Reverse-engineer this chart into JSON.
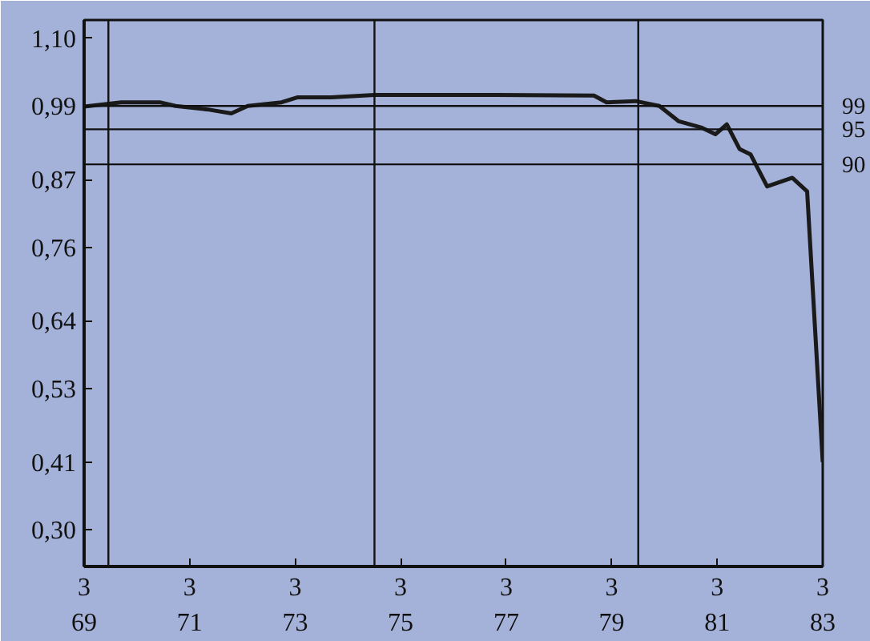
{
  "chart_data": {
    "type": "line",
    "x": [
      "1969-03-01",
      "1969-11-13",
      "1970-08-06",
      "1970-11-24",
      "1971-07-14",
      "1971-12-15",
      "1972-04-07",
      "1972-11-27",
      "1973-03-15",
      "1973-11-06",
      "1974-09-01",
      "1975-12-08",
      "1976-12-19",
      "1978-10-29",
      "1979-01-25",
      "1979-08-13",
      "1980-01-25",
      "1980-06-08",
      "1980-11-09",
      "1981-02-16",
      "1981-05-06",
      "1981-08-02",
      "1981-10-18",
      "1982-02-09",
      "1982-08-02",
      "1982-11-13",
      "1983-03-01"
    ],
    "series": [
      {
        "color": "#1a1a1a",
        "values": [
          0.989,
          0.996,
          0.996,
          0.99,
          0.984,
          0.978,
          0.99,
          0.996,
          1.004,
          1.004,
          1.008,
          1.008,
          1.008,
          1.007,
          0.996,
          0.998,
          0.99,
          0.965,
          0.955,
          0.944,
          0.96,
          0.92,
          0.911,
          0.859,
          0.873,
          0.851,
          0.41
        ]
      }
    ],
    "xlim": [
      "1969-03",
      "1983-03"
    ],
    "xticks": [
      {
        "value": "1969-03",
        "label": "3\n69"
      },
      {
        "value": "1971-03",
        "label": "3\n71"
      },
      {
        "value": "1973-03",
        "label": "3\n73"
      },
      {
        "value": "1975-03",
        "label": "3\n75"
      },
      {
        "value": "1977-03",
        "label": "3\n77"
      },
      {
        "value": "1979-03",
        "label": "3\n79"
      },
      {
        "value": "1981-03",
        "label": "3\n81"
      },
      {
        "value": "1983-03",
        "label": "3\n83"
      }
    ],
    "ylim": [
      0.24,
      1.13
    ],
    "yticks": [
      {
        "value": 0.3,
        "label": "0,30"
      },
      {
        "value": 0.41,
        "label": "0,41"
      },
      {
        "value": 0.53,
        "label": "0,53"
      },
      {
        "value": 0.64,
        "label": "0,64"
      },
      {
        "value": 0.76,
        "label": "0,76"
      },
      {
        "value": 0.87,
        "label": "0,87"
      },
      {
        "value": 0.99,
        "label": "0,99"
      },
      {
        "value": 1.1,
        "label": "1,10"
      }
    ],
    "ref_lines": [
      {
        "axis": "y",
        "value": 0.99,
        "label": "99"
      },
      {
        "axis": "y",
        "value": 0.952,
        "label": "95"
      },
      {
        "axis": "y",
        "value": 0.895,
        "label": "90"
      },
      {
        "axis": "x",
        "value": "1969-08-16",
        "label": null
      },
      {
        "axis": "x",
        "value": "1974-09-01",
        "label": null
      },
      {
        "axis": "x",
        "value": "1979-09-01",
        "label": null
      }
    ],
    "grid": false,
    "marker": "none",
    "line_style": "solid"
  }
}
